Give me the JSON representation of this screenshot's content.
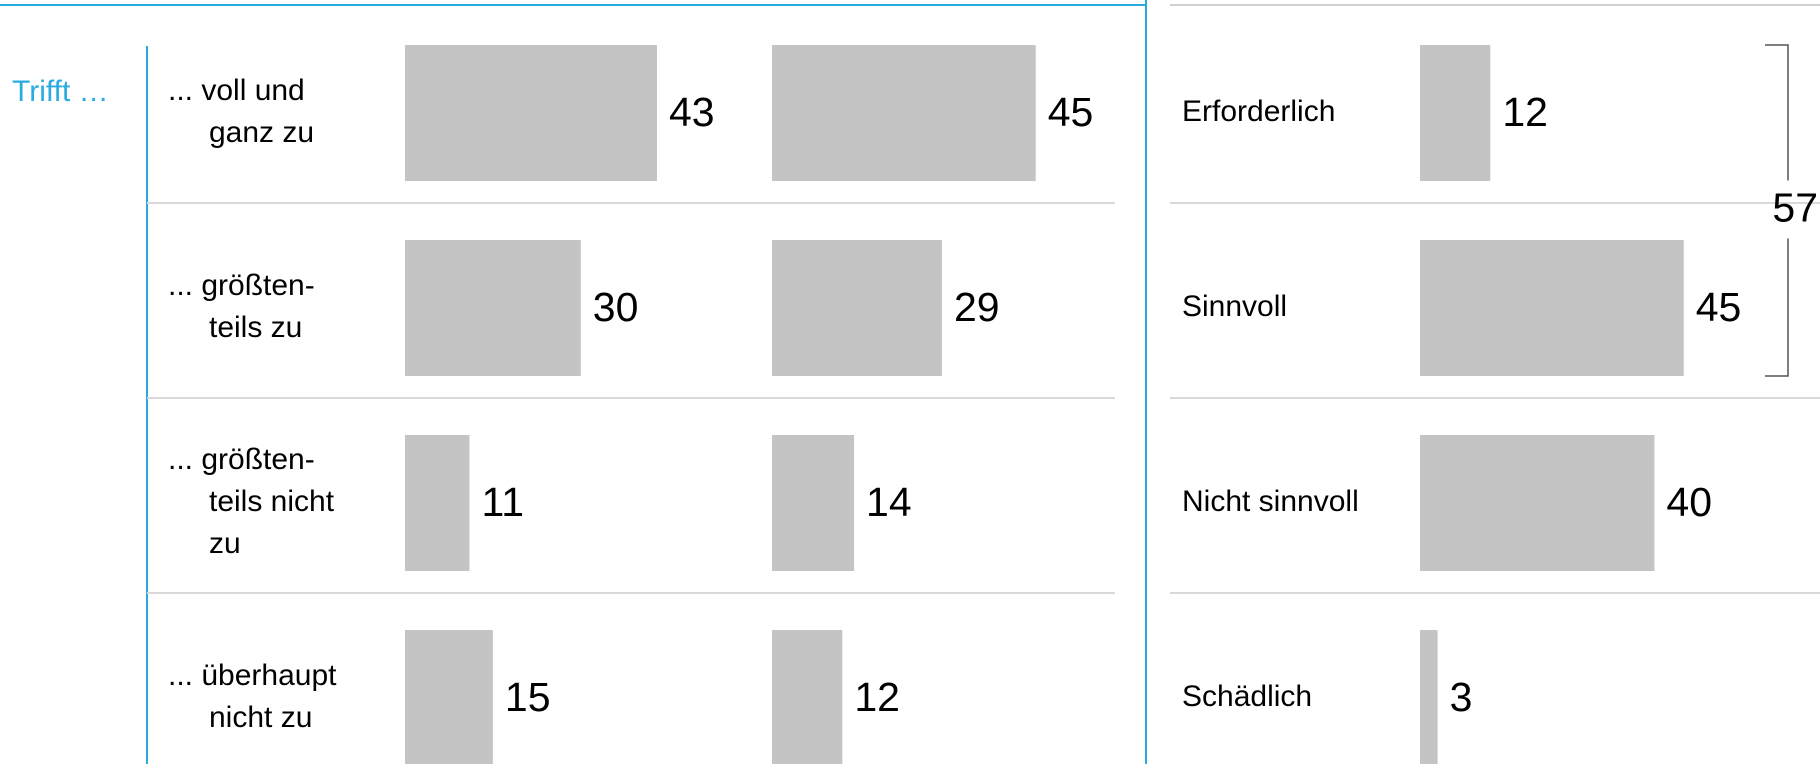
{
  "chart_data": [
    {
      "type": "bar",
      "title": "Trifft …",
      "categories": [
        [
          "... voll und",
          "ganz zu"
        ],
        [
          "... größten-",
          "teils zu"
        ],
        [
          "... größten-",
          "teils nicht",
          "zu"
        ],
        [
          "... überhaupt",
          "nicht zu"
        ]
      ],
      "values": [
        43,
        30,
        11,
        15
      ],
      "color": "#c4c4c4"
    },
    {
      "type": "bar",
      "values": [
        45,
        29,
        14,
        12
      ],
      "color": "#c4c4c4"
    },
    {
      "type": "bar",
      "categories": [
        "Erforderlich",
        "Sinnvoll",
        "Nicht sinnvoll",
        "Schädlich"
      ],
      "values": [
        12,
        45,
        40,
        3
      ],
      "color": "#c4c4c4",
      "total": 57
    }
  ]
}
